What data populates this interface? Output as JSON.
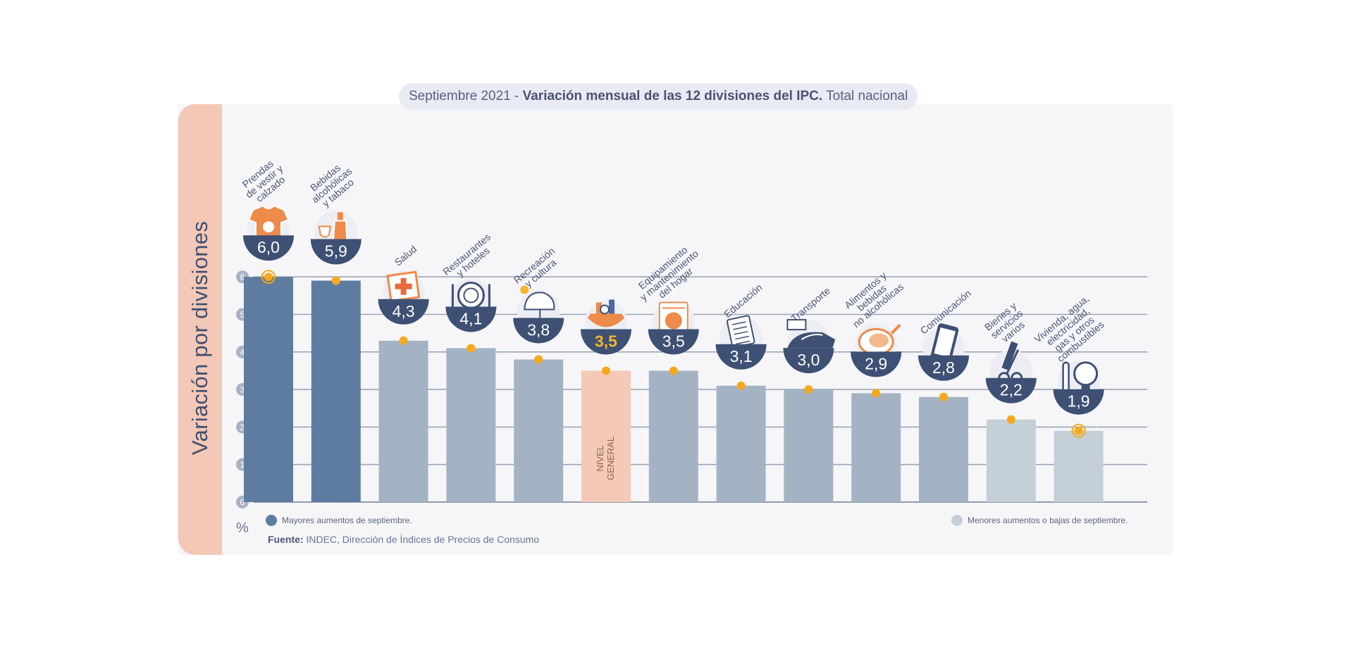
{
  "title": {
    "period": "Septiembre 2021",
    "separator": " - ",
    "main": "Variación mensual de las 12 divisiones del IPC.",
    "scope": " Total nacional"
  },
  "ylabel": "Variación por divisiones",
  "unit": "%",
  "legend": {
    "high": "Mayores aumentos de septiembre.",
    "low": "Menores aumentos o bajas de septiembre."
  },
  "source": {
    "label": "Fuente:",
    "text": " INDEC, Dirección de Índices de Precios de Consumo"
  },
  "general_label": [
    "NIVEL",
    "GENERAL"
  ],
  "colors": {
    "high": "#5e7ca0",
    "mid": "#a4b3c4",
    "low": "#c5cfd7",
    "general": "#f5c9b8",
    "badge": "#3e5074",
    "badge_highlight": "#f6b52e",
    "marker": "#f6a91c",
    "label": "#4a5475",
    "icon_accent": "#ee8a4a"
  },
  "chart_data": {
    "type": "bar",
    "ylim": [
      0,
      6
    ],
    "yticks": [
      "0",
      "1",
      "2",
      "3",
      "4",
      "5",
      "6"
    ],
    "grid": true,
    "categories": [
      [
        "Prendas",
        "de vestir y",
        "calzado"
      ],
      [
        "Bebidas",
        "alcohólicas",
        "y tabaco"
      ],
      [
        "Salud"
      ],
      [
        "Restaurantes",
        "y hoteles"
      ],
      [
        "Recreación",
        "y cultura"
      ],
      [],
      [
        "Equipamiento",
        "y mantenimiento",
        "del hogar"
      ],
      [
        "Educación"
      ],
      [
        "Transporte"
      ],
      [
        "Alimentos y",
        "bebidas",
        "no alcohólicas"
      ],
      [
        "Comunicación"
      ],
      [
        "Bienes y",
        "servicios",
        "varios"
      ],
      [
        "Vivienda, agua,",
        "electricidad,",
        "gas y otros",
        "combustibles"
      ]
    ],
    "values": [
      6.0,
      5.9,
      4.3,
      4.1,
      3.8,
      3.5,
      3.5,
      3.1,
      3.0,
      2.9,
      2.8,
      2.2,
      1.9
    ],
    "value_labels": [
      "6,0",
      "5,9",
      "4,3",
      "4,1",
      "3,8",
      "3,5",
      "3,5",
      "3,1",
      "3,0",
      "2,9",
      "2,8",
      "2,2",
      "1,9"
    ],
    "groups": [
      "high",
      "high",
      "mid",
      "mid",
      "mid",
      "general",
      "mid",
      "mid",
      "mid",
      "mid",
      "mid",
      "low",
      "low"
    ],
    "icons": [
      "shirt-icon",
      "bottle-icon",
      "first-aid-icon",
      "plate-icon",
      "umbrella-icon",
      "shopping-bag-icon",
      "washer-icon",
      "book-icon",
      "car-icon",
      "chicken-icon",
      "phone-icon",
      "scissors-icon",
      "lightbulb-icon"
    ]
  }
}
